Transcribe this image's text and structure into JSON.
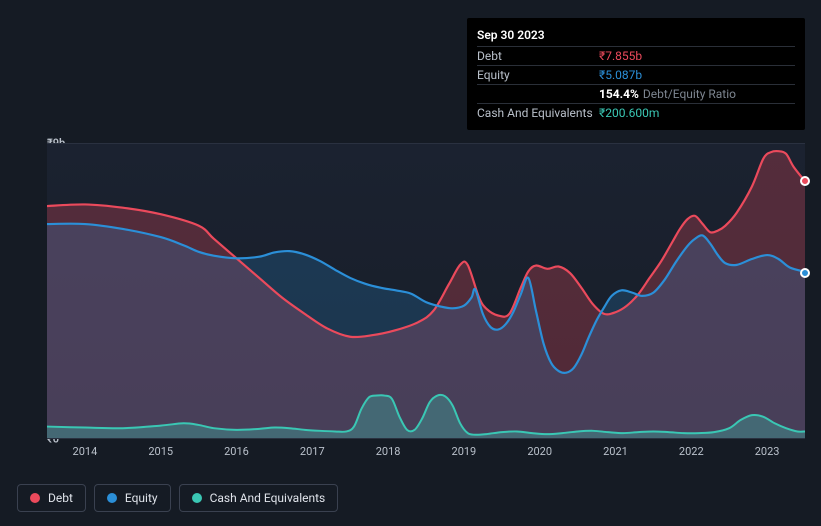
{
  "tooltip": {
    "date": "Sep 30 2023",
    "debt_label": "Debt",
    "debt_value": "₹7.855b",
    "equity_label": "Equity",
    "equity_value": "₹5.087b",
    "ratio_value": "154.4%",
    "ratio_label": "Debt/Equity Ratio",
    "cash_label": "Cash And Equivalents",
    "cash_value": "₹200.600m"
  },
  "chart": {
    "type": "area",
    "ylim": [
      0,
      9
    ],
    "y_unit": "b",
    "y_currency": "₹",
    "y_ticks": [
      {
        "v": 0,
        "label": "₹0"
      },
      {
        "v": 9,
        "label": "₹9b"
      }
    ],
    "x_years": [
      "2014",
      "2015",
      "2016",
      "2017",
      "2018",
      "2019",
      "2020",
      "2021",
      "2022",
      "2023"
    ],
    "background_gradient": [
      "#1b2230",
      "#171d28"
    ],
    "grid_color": "#2a3140",
    "series": {
      "debt": {
        "label": "Debt",
        "color": "#eb4a5c",
        "fill_opacity": 0.28,
        "line_width": 2.2,
        "points": [
          [
            0.0,
            7.1
          ],
          [
            0.05,
            7.15
          ],
          [
            0.1,
            7.05
          ],
          [
            0.15,
            6.85
          ],
          [
            0.2,
            6.5
          ],
          [
            0.22,
            6.1
          ],
          [
            0.25,
            5.5
          ],
          [
            0.28,
            4.9
          ],
          [
            0.31,
            4.3
          ],
          [
            0.34,
            3.8
          ],
          [
            0.37,
            3.35
          ],
          [
            0.4,
            3.1
          ],
          [
            0.43,
            3.15
          ],
          [
            0.46,
            3.3
          ],
          [
            0.49,
            3.55
          ],
          [
            0.51,
            3.9
          ],
          [
            0.53,
            4.7
          ],
          [
            0.545,
            5.3
          ],
          [
            0.555,
            5.3
          ],
          [
            0.57,
            4.3
          ],
          [
            0.58,
            3.95
          ],
          [
            0.595,
            3.75
          ],
          [
            0.61,
            3.8
          ],
          [
            0.625,
            4.6
          ],
          [
            0.635,
            5.1
          ],
          [
            0.645,
            5.28
          ],
          [
            0.66,
            5.18
          ],
          [
            0.675,
            5.25
          ],
          [
            0.69,
            5.05
          ],
          [
            0.705,
            4.6
          ],
          [
            0.72,
            4.1
          ],
          [
            0.735,
            3.8
          ],
          [
            0.75,
            3.85
          ],
          [
            0.765,
            4.05
          ],
          [
            0.78,
            4.4
          ],
          [
            0.795,
            4.9
          ],
          [
            0.81,
            5.4
          ],
          [
            0.825,
            6.0
          ],
          [
            0.835,
            6.4
          ],
          [
            0.845,
            6.7
          ],
          [
            0.855,
            6.8
          ],
          [
            0.865,
            6.55
          ],
          [
            0.875,
            6.3
          ],
          [
            0.885,
            6.35
          ],
          [
            0.895,
            6.5
          ],
          [
            0.91,
            6.9
          ],
          [
            0.93,
            7.7
          ],
          [
            0.945,
            8.55
          ],
          [
            0.955,
            8.75
          ],
          [
            0.965,
            8.78
          ],
          [
            0.975,
            8.7
          ],
          [
            0.985,
            8.3
          ],
          [
            1.0,
            7.86
          ]
        ]
      },
      "equity": {
        "label": "Equity",
        "color": "#2b8fd8",
        "fill_opacity": 0.22,
        "line_width": 2.2,
        "points": [
          [
            0.0,
            6.55
          ],
          [
            0.05,
            6.55
          ],
          [
            0.1,
            6.4
          ],
          [
            0.15,
            6.15
          ],
          [
            0.18,
            5.9
          ],
          [
            0.2,
            5.7
          ],
          [
            0.22,
            5.58
          ],
          [
            0.25,
            5.5
          ],
          [
            0.28,
            5.55
          ],
          [
            0.3,
            5.68
          ],
          [
            0.32,
            5.72
          ],
          [
            0.34,
            5.62
          ],
          [
            0.36,
            5.42
          ],
          [
            0.38,
            5.15
          ],
          [
            0.4,
            4.9
          ],
          [
            0.42,
            4.72
          ],
          [
            0.44,
            4.6
          ],
          [
            0.46,
            4.52
          ],
          [
            0.48,
            4.42
          ],
          [
            0.5,
            4.16
          ],
          [
            0.52,
            4.02
          ],
          [
            0.535,
            3.97
          ],
          [
            0.55,
            4.05
          ],
          [
            0.56,
            4.3
          ],
          [
            0.565,
            4.55
          ],
          [
            0.575,
            3.8
          ],
          [
            0.585,
            3.4
          ],
          [
            0.595,
            3.32
          ],
          [
            0.605,
            3.48
          ],
          [
            0.615,
            3.85
          ],
          [
            0.625,
            4.4
          ],
          [
            0.635,
            4.9
          ],
          [
            0.645,
            3.9
          ],
          [
            0.655,
            2.9
          ],
          [
            0.665,
            2.3
          ],
          [
            0.675,
            2.05
          ],
          [
            0.685,
            2.0
          ],
          [
            0.695,
            2.15
          ],
          [
            0.705,
            2.55
          ],
          [
            0.715,
            3.1
          ],
          [
            0.725,
            3.6
          ],
          [
            0.735,
            4.0
          ],
          [
            0.745,
            4.35
          ],
          [
            0.758,
            4.52
          ],
          [
            0.772,
            4.45
          ],
          [
            0.785,
            4.35
          ],
          [
            0.8,
            4.45
          ],
          [
            0.815,
            4.85
          ],
          [
            0.83,
            5.4
          ],
          [
            0.845,
            5.88
          ],
          [
            0.855,
            6.1
          ],
          [
            0.865,
            6.2
          ],
          [
            0.875,
            5.95
          ],
          [
            0.885,
            5.6
          ],
          [
            0.895,
            5.35
          ],
          [
            0.91,
            5.3
          ],
          [
            0.93,
            5.48
          ],
          [
            0.95,
            5.6
          ],
          [
            0.965,
            5.48
          ],
          [
            0.98,
            5.22
          ],
          [
            1.0,
            5.09
          ]
        ]
      },
      "cash": {
        "label": "Cash And Equivalents",
        "color": "#3ac7b4",
        "fill_opacity": 0.3,
        "line_width": 2.0,
        "points": [
          [
            0.0,
            0.35
          ],
          [
            0.05,
            0.32
          ],
          [
            0.1,
            0.3
          ],
          [
            0.15,
            0.38
          ],
          [
            0.18,
            0.45
          ],
          [
            0.2,
            0.4
          ],
          [
            0.22,
            0.3
          ],
          [
            0.25,
            0.25
          ],
          [
            0.28,
            0.28
          ],
          [
            0.3,
            0.32
          ],
          [
            0.32,
            0.3
          ],
          [
            0.34,
            0.25
          ],
          [
            0.36,
            0.22
          ],
          [
            0.38,
            0.2
          ],
          [
            0.395,
            0.2
          ],
          [
            0.405,
            0.35
          ],
          [
            0.415,
            0.9
          ],
          [
            0.425,
            1.25
          ],
          [
            0.435,
            1.3
          ],
          [
            0.445,
            1.3
          ],
          [
            0.455,
            1.2
          ],
          [
            0.465,
            0.65
          ],
          [
            0.475,
            0.25
          ],
          [
            0.485,
            0.25
          ],
          [
            0.495,
            0.6
          ],
          [
            0.505,
            1.1
          ],
          [
            0.515,
            1.3
          ],
          [
            0.525,
            1.28
          ],
          [
            0.535,
            1.0
          ],
          [
            0.545,
            0.45
          ],
          [
            0.555,
            0.15
          ],
          [
            0.565,
            0.1
          ],
          [
            0.58,
            0.12
          ],
          [
            0.6,
            0.18
          ],
          [
            0.62,
            0.2
          ],
          [
            0.64,
            0.15
          ],
          [
            0.66,
            0.12
          ],
          [
            0.68,
            0.15
          ],
          [
            0.7,
            0.2
          ],
          [
            0.72,
            0.22
          ],
          [
            0.74,
            0.18
          ],
          [
            0.76,
            0.15
          ],
          [
            0.78,
            0.18
          ],
          [
            0.8,
            0.2
          ],
          [
            0.82,
            0.18
          ],
          [
            0.84,
            0.15
          ],
          [
            0.86,
            0.15
          ],
          [
            0.88,
            0.18
          ],
          [
            0.9,
            0.3
          ],
          [
            0.915,
            0.55
          ],
          [
            0.93,
            0.7
          ],
          [
            0.945,
            0.65
          ],
          [
            0.96,
            0.45
          ],
          [
            0.975,
            0.3
          ],
          [
            0.99,
            0.2
          ],
          [
            1.0,
            0.2
          ]
        ]
      }
    },
    "markers": [
      {
        "series": "debt",
        "x": 1.0,
        "y": 7.86
      },
      {
        "series": "equity",
        "x": 1.0,
        "y": 5.09
      }
    ]
  },
  "legend": {
    "items": [
      {
        "key": "debt",
        "label": "Debt",
        "color": "#eb4a5c"
      },
      {
        "key": "equity",
        "label": "Equity",
        "color": "#2b8fd8"
      },
      {
        "key": "cash",
        "label": "Cash And Equivalents",
        "color": "#3ac7b4"
      }
    ]
  },
  "axis_label_color": "#b9c0ca",
  "axis_fontsize": 11
}
